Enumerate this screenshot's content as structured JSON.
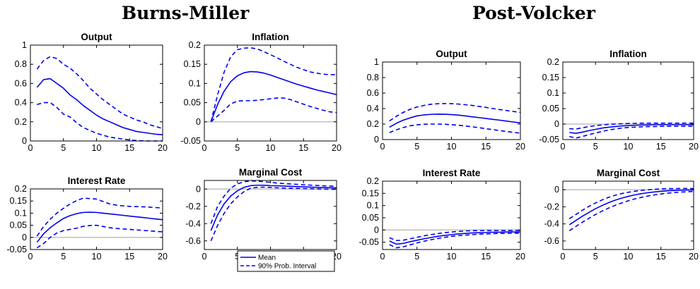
{
  "groups": [
    {
      "title": "Burns-Miller"
    },
    {
      "title": "Post-Volcker"
    }
  ],
  "legend": {
    "mean_label": "Mean",
    "interval_label": "90% Prob. Interval"
  },
  "colors": {
    "line": "#0000ee",
    "zero_line": "#bfbfbf",
    "axes": "#000000"
  },
  "chart_data": [
    {
      "type": "line",
      "group": "Burns-Miller",
      "title": "Output",
      "xlim": [
        0,
        20
      ],
      "ylim": [
        0,
        1
      ],
      "xticks": [
        "0",
        "5",
        "10",
        "15",
        "20"
      ],
      "yticks": [
        "0",
        "0.2",
        "0.4",
        "0.6",
        "0.8",
        "1"
      ],
      "x": [
        1,
        2,
        3,
        4,
        5,
        6,
        7,
        8,
        9,
        10,
        11,
        12,
        13,
        14,
        15,
        16,
        17,
        18,
        19,
        20
      ],
      "series": [
        {
          "name": "Mean",
          "values": [
            0.56,
            0.64,
            0.65,
            0.6,
            0.55,
            0.48,
            0.43,
            0.37,
            0.32,
            0.27,
            0.23,
            0.2,
            0.17,
            0.14,
            0.12,
            0.1,
            0.09,
            0.08,
            0.07,
            0.065
          ]
        },
        {
          "name": "90% Prob. Interval",
          "values": [
            0.75,
            0.84,
            0.88,
            0.86,
            0.8,
            0.76,
            0.7,
            0.63,
            0.55,
            0.49,
            0.43,
            0.38,
            0.33,
            0.28,
            0.25,
            0.22,
            0.2,
            0.17,
            0.15,
            0.13
          ]
        },
        {
          "name": "90% Prob. Interval",
          "values": [
            0.38,
            0.4,
            0.4,
            0.35,
            0.28,
            0.25,
            0.19,
            0.14,
            0.11,
            0.08,
            0.06,
            0.04,
            0.03,
            0.02,
            0.01,
            0.005,
            0.002,
            0.0,
            0.0,
            0.0
          ]
        }
      ]
    },
    {
      "type": "line",
      "group": "Burns-Miller",
      "title": "Inflation",
      "xlim": [
        0,
        20
      ],
      "ylim": [
        -0.05,
        0.2
      ],
      "zero_line": true,
      "xticks": [
        "0",
        "5",
        "10",
        "15",
        "20"
      ],
      "yticks": [
        "-0.05",
        "0",
        "0.05",
        "0.1",
        "0.15",
        "0.2"
      ],
      "x": [
        1,
        2,
        3,
        4,
        5,
        6,
        7,
        8,
        9,
        10,
        11,
        12,
        13,
        14,
        15,
        16,
        17,
        18,
        19,
        20
      ],
      "series": [
        {
          "name": "Mean",
          "values": [
            0.0,
            0.045,
            0.08,
            0.105,
            0.12,
            0.128,
            0.131,
            0.13,
            0.127,
            0.122,
            0.116,
            0.11,
            0.104,
            0.098,
            0.093,
            0.088,
            0.083,
            0.079,
            0.075,
            0.071
          ]
        },
        {
          "name": "90% Prob. Interval",
          "values": [
            0.0,
            0.07,
            0.13,
            0.17,
            0.188,
            0.192,
            0.193,
            0.19,
            0.183,
            0.175,
            0.167,
            0.158,
            0.15,
            0.142,
            0.136,
            0.13,
            0.127,
            0.124,
            0.123,
            0.123
          ]
        },
        {
          "name": "90% Prob. Interval",
          "values": [
            0.0,
            0.015,
            0.03,
            0.047,
            0.054,
            0.055,
            0.055,
            0.056,
            0.058,
            0.06,
            0.062,
            0.062,
            0.058,
            0.052,
            0.046,
            0.04,
            0.035,
            0.03,
            0.026,
            0.024
          ]
        }
      ]
    },
    {
      "type": "line",
      "group": "Burns-Miller",
      "title": "Interest Rate",
      "xlim": [
        0,
        20
      ],
      "ylim": [
        -0.05,
        0.2
      ],
      "zero_line": true,
      "xticks": [
        "0",
        "5",
        "10",
        "15",
        "20"
      ],
      "yticks": [
        "-0.05",
        "0",
        "0.05",
        "0.1",
        "0.15",
        "0.2"
      ],
      "x": [
        1,
        2,
        3,
        4,
        5,
        6,
        7,
        8,
        9,
        10,
        11,
        12,
        13,
        14,
        15,
        16,
        17,
        18,
        19,
        20
      ],
      "series": [
        {
          "name": "Mean",
          "values": [
            -0.02,
            0.015,
            0.04,
            0.06,
            0.078,
            0.09,
            0.098,
            0.103,
            0.104,
            0.103,
            0.1,
            0.097,
            0.094,
            0.091,
            0.088,
            0.085,
            0.082,
            0.079,
            0.076,
            0.073
          ]
        },
        {
          "name": "90% Prob. Interval",
          "values": [
            0.005,
            0.045,
            0.075,
            0.1,
            0.12,
            0.138,
            0.152,
            0.162,
            0.16,
            0.158,
            0.148,
            0.138,
            0.133,
            0.13,
            0.128,
            0.127,
            0.126,
            0.125,
            0.123,
            0.121
          ]
        },
        {
          "name": "90% Prob. Interval",
          "values": [
            -0.043,
            -0.025,
            0.0,
            0.018,
            0.028,
            0.033,
            0.038,
            0.046,
            0.049,
            0.05,
            0.045,
            0.04,
            0.037,
            0.035,
            0.033,
            0.031,
            0.029,
            0.027,
            0.025,
            0.023
          ]
        }
      ]
    },
    {
      "type": "line",
      "group": "Burns-Miller",
      "title": "Marginal Cost",
      "xlim": [
        0,
        20
      ],
      "ylim": [
        -0.7,
        0.1
      ],
      "zero_line": true,
      "xticks": [
        "0",
        "5",
        "10",
        "15",
        "20"
      ],
      "yticks": [
        "-0.6",
        "-0.4",
        "-0.2",
        "0"
      ],
      "x": [
        1,
        2,
        3,
        4,
        5,
        6,
        7,
        8,
        9,
        10,
        11,
        12,
        13,
        14,
        15,
        16,
        17,
        18,
        19,
        20
      ],
      "series": [
        {
          "name": "Mean",
          "values": [
            -0.48,
            -0.3,
            -0.17,
            -0.08,
            -0.02,
            0.02,
            0.04,
            0.045,
            0.045,
            0.04,
            0.038,
            0.035,
            0.032,
            0.029,
            0.026,
            0.023,
            0.02,
            0.018,
            0.016,
            0.014
          ]
        },
        {
          "name": "90% Prob. Interval",
          "values": [
            -0.4,
            -0.2,
            -0.08,
            0.01,
            0.06,
            0.085,
            0.095,
            0.092,
            0.086,
            0.078,
            0.07,
            0.064,
            0.06,
            0.055,
            0.05,
            0.046,
            0.042,
            0.038,
            0.035,
            0.032
          ]
        },
        {
          "name": "90% Prob. Interval",
          "values": [
            -0.6,
            -0.42,
            -0.28,
            -0.17,
            -0.09,
            -0.03,
            0.01,
            0.02,
            0.023,
            0.02,
            0.015,
            0.012,
            0.01,
            0.008,
            0.006,
            0.004,
            0.002,
            0.0,
            -0.002,
            -0.003
          ]
        }
      ]
    },
    {
      "type": "line",
      "group": "Post-Volcker",
      "title": "Output",
      "xlim": [
        0,
        20
      ],
      "ylim": [
        0,
        1
      ],
      "xticks": [
        "0",
        "5",
        "10",
        "15",
        "20"
      ],
      "yticks": [
        "0",
        "0.2",
        "0.4",
        "0.6",
        "0.8",
        "1"
      ],
      "x": [
        1,
        2,
        3,
        4,
        5,
        6,
        7,
        8,
        9,
        10,
        11,
        12,
        13,
        14,
        15,
        16,
        17,
        18,
        19,
        20
      ],
      "series": [
        {
          "name": "Mean",
          "values": [
            0.16,
            0.21,
            0.25,
            0.28,
            0.305,
            0.318,
            0.325,
            0.328,
            0.327,
            0.322,
            0.315,
            0.305,
            0.294,
            0.283,
            0.272,
            0.261,
            0.25,
            0.238,
            0.226,
            0.215
          ]
        },
        {
          "name": "90% Prob. Interval",
          "values": [
            0.24,
            0.3,
            0.35,
            0.39,
            0.42,
            0.44,
            0.455,
            0.462,
            0.464,
            0.463,
            0.458,
            0.45,
            0.44,
            0.428,
            0.415,
            0.4,
            0.387,
            0.374,
            0.362,
            0.35
          ]
        },
        {
          "name": "90% Prob. Interval",
          "values": [
            0.09,
            0.125,
            0.155,
            0.178,
            0.19,
            0.197,
            0.2,
            0.2,
            0.197,
            0.192,
            0.185,
            0.175,
            0.165,
            0.153,
            0.14,
            0.128,
            0.116,
            0.104,
            0.093,
            0.083
          ]
        }
      ]
    },
    {
      "type": "line",
      "group": "Post-Volcker",
      "title": "Inflation",
      "xlim": [
        0,
        20
      ],
      "ylim": [
        -0.05,
        0.2
      ],
      "zero_line": true,
      "xticks": [
        "0",
        "5",
        "10",
        "15",
        "20"
      ],
      "yticks": [
        "-0.05",
        "0",
        "0.05",
        "0.1",
        "0.15",
        "0.2"
      ],
      "x": [
        1,
        2,
        3,
        4,
        5,
        6,
        7,
        8,
        9,
        10,
        11,
        12,
        13,
        14,
        15,
        16,
        17,
        18,
        19,
        20
      ],
      "series": [
        {
          "name": "Mean",
          "values": [
            -0.027,
            -0.03,
            -0.026,
            -0.021,
            -0.017,
            -0.013,
            -0.01,
            -0.008,
            -0.006,
            -0.005,
            -0.004,
            -0.003,
            -0.003,
            -0.002,
            -0.002,
            -0.002,
            -0.002,
            -0.002,
            -0.002,
            -0.002
          ]
        },
        {
          "name": "90% Prob. Interval",
          "values": [
            -0.015,
            -0.016,
            -0.012,
            -0.008,
            -0.005,
            -0.003,
            -0.001,
            0.0,
            0.001,
            0.002,
            0.002,
            0.003,
            0.003,
            0.003,
            0.003,
            0.003,
            0.003,
            0.003,
            0.003,
            0.003
          ]
        },
        {
          "name": "90% Prob. Interval",
          "values": [
            -0.04,
            -0.045,
            -0.04,
            -0.034,
            -0.029,
            -0.024,
            -0.019,
            -0.016,
            -0.013,
            -0.011,
            -0.01,
            -0.009,
            -0.008,
            -0.008,
            -0.007,
            -0.007,
            -0.007,
            -0.007,
            -0.007,
            -0.007
          ]
        }
      ]
    },
    {
      "type": "line",
      "group": "Post-Volcker",
      "title": "Interest Rate",
      "xlim": [
        0,
        20
      ],
      "ylim": [
        -0.08,
        0.2
      ],
      "zero_line": true,
      "xticks": [
        "0",
        "5",
        "10",
        "15",
        "20"
      ],
      "yticks": [
        "-0.05",
        "0",
        "0.05",
        "0.1",
        "0.15",
        "0.2"
      ],
      "x": [
        1,
        2,
        3,
        4,
        5,
        6,
        7,
        8,
        9,
        10,
        11,
        12,
        13,
        14,
        15,
        16,
        17,
        18,
        19,
        20
      ],
      "series": [
        {
          "name": "Mean",
          "values": [
            -0.045,
            -0.058,
            -0.055,
            -0.048,
            -0.042,
            -0.036,
            -0.031,
            -0.026,
            -0.022,
            -0.019,
            -0.016,
            -0.014,
            -0.012,
            -0.011,
            -0.01,
            -0.009,
            -0.009,
            -0.008,
            -0.008,
            -0.008
          ]
        },
        {
          "name": "90% Prob. Interval",
          "values": [
            -0.032,
            -0.043,
            -0.042,
            -0.036,
            -0.03,
            -0.024,
            -0.019,
            -0.015,
            -0.011,
            -0.008,
            -0.006,
            -0.004,
            -0.003,
            -0.002,
            -0.002,
            -0.002,
            -0.002,
            -0.002,
            -0.002,
            -0.002
          ]
        },
        {
          "name": "90% Prob. Interval",
          "values": [
            -0.06,
            -0.073,
            -0.069,
            -0.061,
            -0.053,
            -0.046,
            -0.04,
            -0.035,
            -0.03,
            -0.026,
            -0.023,
            -0.021,
            -0.019,
            -0.017,
            -0.016,
            -0.015,
            -0.014,
            -0.014,
            -0.013,
            -0.013
          ]
        }
      ]
    },
    {
      "type": "line",
      "group": "Post-Volcker",
      "title": "Marginal Cost",
      "xlim": [
        0,
        20
      ],
      "ylim": [
        -0.7,
        0.1
      ],
      "zero_line": true,
      "xticks": [
        "0",
        "5",
        "10",
        "15",
        "20"
      ],
      "yticks": [
        "-0.6",
        "-0.4",
        "-0.2",
        "0"
      ],
      "x": [
        1,
        2,
        3,
        4,
        5,
        6,
        7,
        8,
        9,
        10,
        11,
        12,
        13,
        14,
        15,
        16,
        17,
        18,
        19,
        20
      ],
      "series": [
        {
          "name": "Mean",
          "values": [
            -0.41,
            -0.36,
            -0.31,
            -0.265,
            -0.222,
            -0.185,
            -0.152,
            -0.123,
            -0.099,
            -0.078,
            -0.061,
            -0.047,
            -0.035,
            -0.026,
            -0.019,
            -0.013,
            -0.009,
            -0.006,
            -0.004,
            -0.003
          ]
        },
        {
          "name": "90% Prob. Interval",
          "values": [
            -0.34,
            -0.29,
            -0.24,
            -0.195,
            -0.155,
            -0.12,
            -0.09,
            -0.065,
            -0.045,
            -0.03,
            -0.018,
            -0.008,
            -0.001,
            0.005,
            0.009,
            0.012,
            0.013,
            0.014,
            0.014,
            0.013
          ]
        },
        {
          "name": "90% Prob. Interval",
          "values": [
            -0.48,
            -0.43,
            -0.38,
            -0.335,
            -0.29,
            -0.25,
            -0.215,
            -0.183,
            -0.155,
            -0.13,
            -0.108,
            -0.09,
            -0.074,
            -0.061,
            -0.05,
            -0.041,
            -0.034,
            -0.028,
            -0.024,
            -0.021
          ]
        }
      ],
      "legend": true
    }
  ]
}
